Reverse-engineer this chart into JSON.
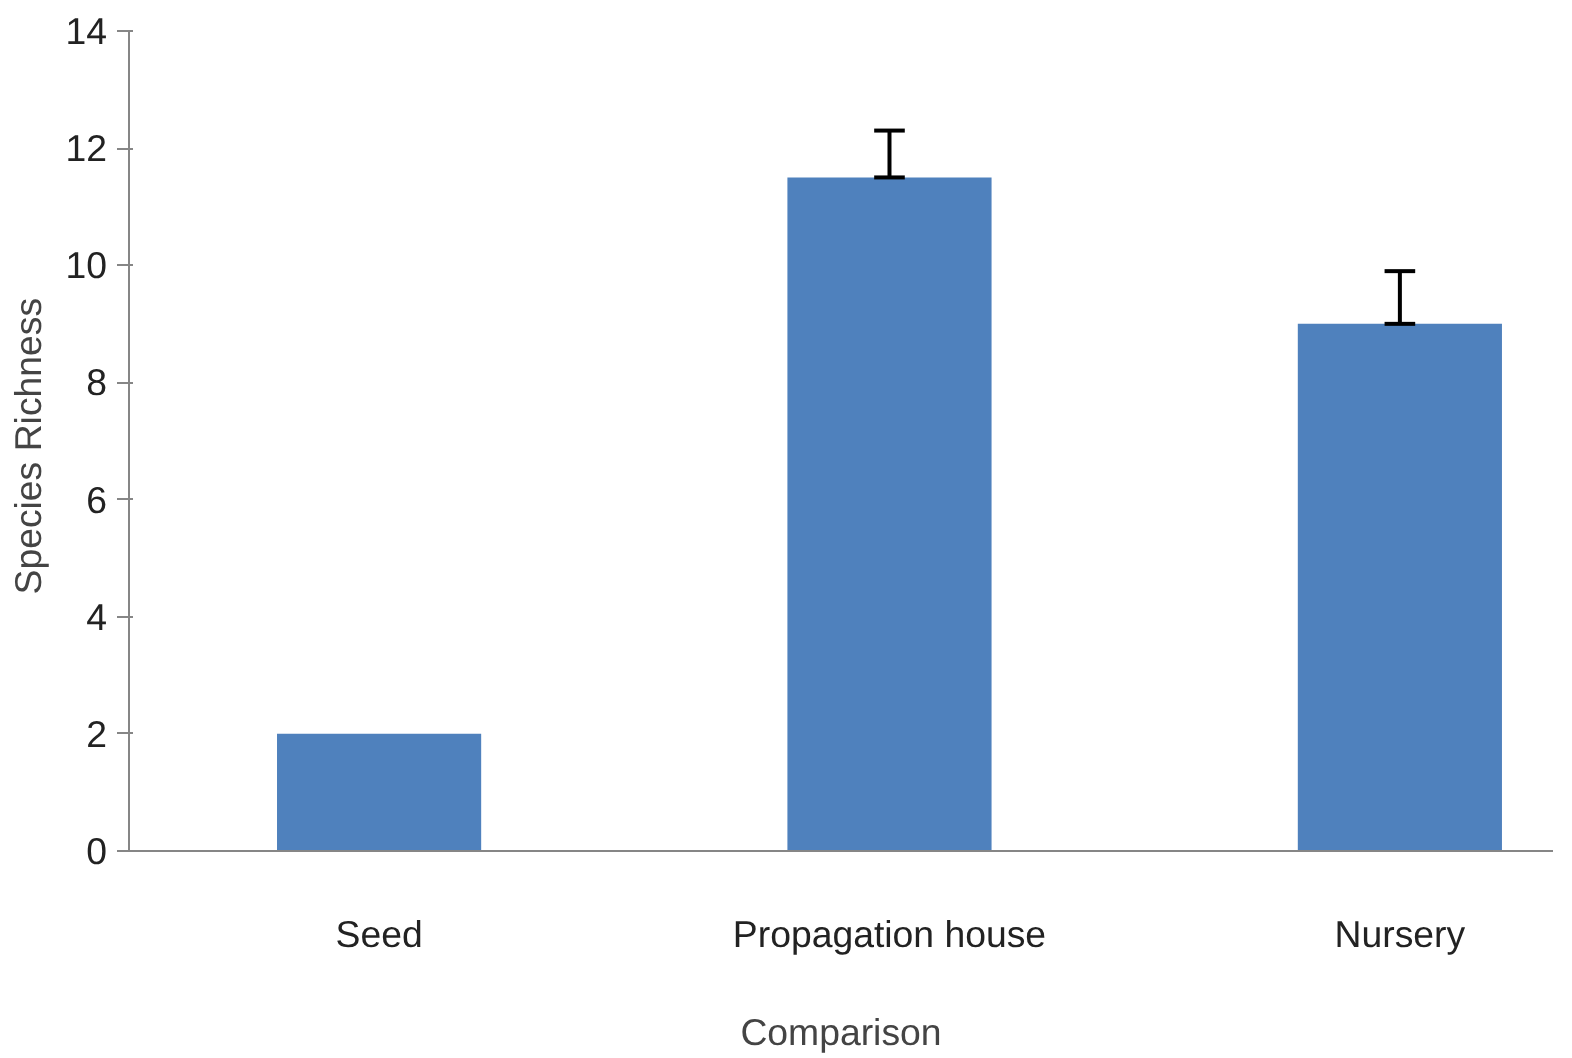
{
  "chart_data": {
    "type": "bar",
    "xlabel": "Comparison",
    "ylabel": "Species  Richness",
    "categories": [
      "Seed",
      "Propagation house",
      "Nursery"
    ],
    "values": [
      2.0,
      11.5,
      9.0
    ],
    "errors": [
      null,
      [
        11.5,
        12.3
      ],
      [
        9.0,
        9.9
      ]
    ],
    "color": "#4f81bd",
    "ylim": [
      0,
      14
    ],
    "yticks": [
      0,
      2,
      4,
      6,
      8,
      10,
      12,
      14
    ],
    "grid": false
  }
}
